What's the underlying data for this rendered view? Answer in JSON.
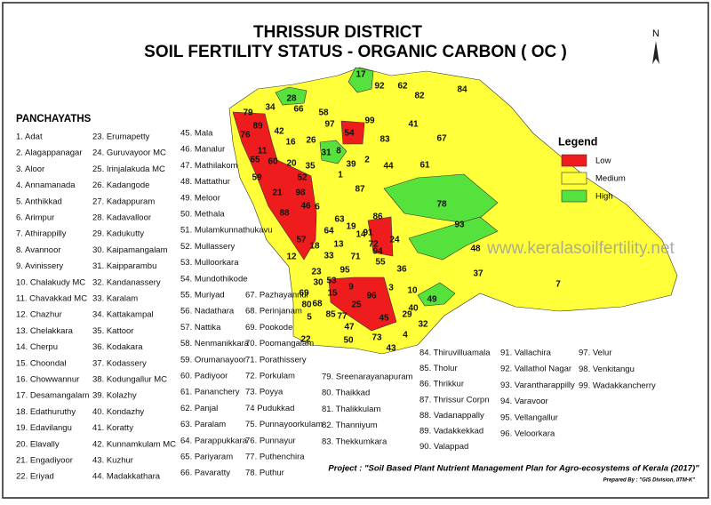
{
  "title": {
    "line1": "THRISSUR DISTRICT",
    "line2": "SOIL FERTILITY STATUS - ORGANIC CARBON ( OC )"
  },
  "north_label": "N",
  "list_heading": "PANCHAYATHS",
  "panchayaths": [
    "1. Adat",
    "2. Alagappanagar",
    "3. Aloor",
    "4. Annamanada",
    "5. Anthikkad",
    "6. Arimpur",
    "7. Athirappilly",
    "8. Avannoor",
    "9. Avinissery",
    "10. Chalakudy MC",
    "11. Chavakkad  MC",
    "12. Chazhur",
    "13. Chelakkara",
    "14. Cherpu",
    "15. Choondal",
    "16. Chowwannur",
    "17. Desamangalam",
    "18. Edathuruthy",
    "19. Edavilangu",
    "20. Elavally",
    "21. Engadiyoor",
    "22. Eriyad",
    "23. Erumapetty",
    "24. Guruvayoor  MC",
    "25. Irinjalakuda  MC",
    "26. Kadangode",
    "27. Kadappuram",
    "28. Kadavalloor",
    "29. Kadukutty",
    "30. Kaipamangalam",
    "31. Kaipparambu",
    "32. Kandanassery",
    "33. Karalam",
    "34. Kattakampal",
    "35. Kattoor",
    "36. Kodakara",
    "37. Kodassery",
    "38. Kodungallur MC",
    "39. Kolazhy",
    "40. Kondazhy",
    "41. Koratty",
    "42. Kunnamkulam  MC",
    "43. Kuzhur",
    "44. Madakkathara",
    "45. Mala",
    "46. Manalur",
    "47. Mathilakom",
    "48. Mattathur",
    "49. Meloor",
    "50. Methala",
    "51. Mulamkunnathukavu",
    "52. Mullassery",
    "53. Mulloorkara",
    "54. Mundothikode",
    "55. Muriyad",
    "56. Nadathara",
    "57. Nattika",
    "58. Nenmanikkara",
    "59. Orumanayoor",
    "60. Padiyoor",
    "61. Pananchery",
    "62. Panjal",
    "63. Paralam",
    "64. Parappukkara",
    "65. Pariyaram",
    "66. Pavaratty",
    "67. Pazhayannur",
    "68. Perinjanam",
    "69. Pookode",
    "70. Poomangalam",
    "71. Porathissery",
    "72. Porkulam",
    "73. Poyya",
    "74 Pudukkad",
    "75. Punnayoorkulam",
    "76. Punnayur",
    "77. Puthenchira",
    "78. Puthur",
    "79. Sreenarayanapuram",
    "80. Thaikkad",
    "81. Thalikkulam",
    "82. Thanniyum",
    "83. Thekkumkara",
    "84. Thiruvilluamala",
    "85. Tholur",
    "86. Thrikkur",
    "87. Thrissur Corpn",
    "88. Vadanappally",
    "89. Vadakkekkad",
    "90. Valappad",
    "91. Vallachira",
    "92. Vallathol Nagar",
    "93. Varantharappilly",
    "94. Varavoor",
    "95. Vellangallur",
    "96. Veloorkara",
    "97. Velur",
    "98. Venkitangu",
    "99. Wadakkancherry"
  ],
  "legend": {
    "title": "Legend",
    "items": [
      {
        "label": "Low",
        "color": "#ee1c1c"
      },
      {
        "label": "Medium",
        "color": "#ffff3a"
      },
      {
        "label": "High",
        "color": "#55e23c"
      }
    ]
  },
  "watermark": "www.keralasoilfertility.net",
  "region_labels": [
    "17",
    "92",
    "62",
    "84",
    "28",
    "79",
    "34",
    "66",
    "58",
    "97",
    "99",
    "82",
    "41",
    "54",
    "89",
    "76",
    "42",
    "16",
    "26",
    "83",
    "67",
    "35",
    "11",
    "65",
    "60",
    "20",
    "8",
    "31",
    "39",
    "44",
    "61",
    "2",
    "59",
    "21",
    "52",
    "87",
    "1",
    "98",
    "88",
    "46",
    "6",
    "63",
    "64",
    "19",
    "14",
    "91",
    "86",
    "78",
    "93",
    "24",
    "72",
    "13",
    "18",
    "57",
    "12",
    "33",
    "71",
    "55",
    "94",
    "48",
    "95",
    "36",
    "37",
    "7",
    "10",
    "23",
    "53",
    "30",
    "15",
    "69",
    "9",
    "3",
    "80",
    "25",
    "96",
    "40",
    "68",
    "49",
    "29",
    "77",
    "45",
    "85",
    "47",
    "4",
    "22",
    "50",
    "73",
    "43",
    "32",
    "5"
  ],
  "project": "Project : \"Soil Based Plant Nutrient Management Plan for Agro-ecosystems of Kerala (2017)\"",
  "prepared_by": "Prepared By : \"GIS Division, IITM-K\""
}
